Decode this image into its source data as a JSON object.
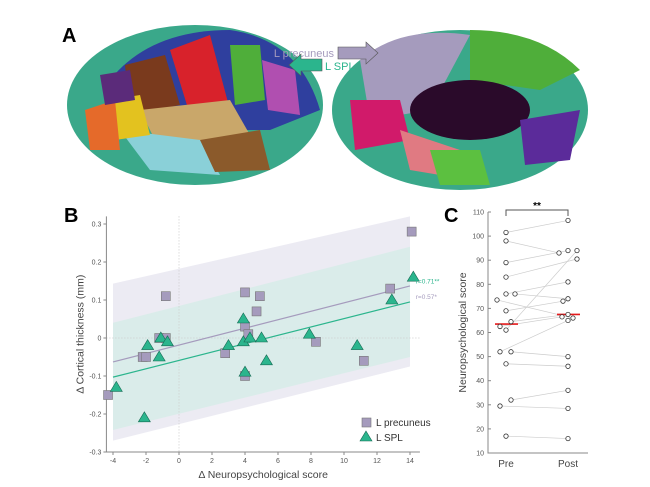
{
  "panel_labels": {
    "a": "A",
    "b": "B",
    "c": "C"
  },
  "panel_a": {
    "arrow_precuneus": "L precuneus",
    "arrow_spl": "L SPL",
    "colors": {
      "precuneus": "#a59bbd",
      "spl": "#2bb58d"
    }
  },
  "chart_data": [
    {
      "type": "scatter",
      "xlabel": "Δ Neuropsychological score",
      "ylabel": "Δ Cortical thickness (mm)",
      "xlim": [
        -4.4,
        14.6
      ],
      "ylim": [
        -0.3,
        0.32
      ],
      "xticks": [
        "-4",
        "-2",
        "0",
        "2",
        "4",
        "6",
        "8",
        "10",
        "12",
        "14"
      ],
      "yticks": [
        "-0.3",
        "-0.2",
        "-0.1",
        "0",
        "0.1",
        "0.2",
        "0.3"
      ],
      "legend_placement": "bottom-right",
      "series": [
        {
          "name": "L precuneus",
          "marker": "square",
          "color": "#a59bbd",
          "points": [
            [
              -4.3,
              -0.15
            ],
            [
              -2.2,
              -0.05
            ],
            [
              -2,
              -0.05
            ],
            [
              -1.2,
              0
            ],
            [
              -0.8,
              0
            ],
            [
              -0.8,
              0.11
            ],
            [
              2.8,
              -0.04
            ],
            [
              4,
              0.12
            ],
            [
              4,
              0.03
            ],
            [
              4.2,
              0.01
            ],
            [
              4,
              -0.1
            ],
            [
              4.7,
              0.07
            ],
            [
              4.9,
              0.11
            ],
            [
              8.3,
              -0.01
            ],
            [
              11.2,
              -0.06
            ],
            [
              12.8,
              0.13
            ],
            [
              14.1,
              0.28
            ]
          ],
          "fit": [
            [
              -4,
              -0.063
            ],
            [
              14,
              0.137
            ]
          ],
          "band_upper": [
            [
              -4,
              0.143
            ],
            [
              14,
              0.32
            ]
          ],
          "band_lower": [
            [
              -4,
              -0.27
            ],
            [
              14,
              -0.075
            ]
          ],
          "annotation": "r=0.57*"
        },
        {
          "name": "L SPL",
          "marker": "triangle",
          "color": "#2bb58d",
          "points": [
            [
              -3.8,
              -0.13
            ],
            [
              -2.1,
              -0.21
            ],
            [
              -1.9,
              -0.02
            ],
            [
              -1.2,
              -0.05
            ],
            [
              -1.1,
              0
            ],
            [
              -0.7,
              -0.01
            ],
            [
              3,
              -0.02
            ],
            [
              3.9,
              0.05
            ],
            [
              3.9,
              -0.01
            ],
            [
              4,
              -0.09
            ],
            [
              4.3,
              0
            ],
            [
              5,
              0
            ],
            [
              5.3,
              -0.06
            ],
            [
              7.9,
              0.01
            ],
            [
              10.8,
              -0.02
            ],
            [
              12.9,
              0.1
            ],
            [
              14.2,
              0.16
            ]
          ],
          "fit": [
            [
              -4,
              -0.103
            ],
            [
              14,
              0.095
            ]
          ],
          "band_upper": [
            [
              -4,
              0.04
            ],
            [
              14,
              0.24
            ]
          ],
          "band_lower": [
            [
              -4,
              -0.242
            ],
            [
              14,
              -0.05
            ]
          ],
          "annotation": "r=0.71**"
        }
      ]
    },
    {
      "type": "paired-scatter",
      "ylabel": "Neuropsychological score",
      "categories": [
        "Pre",
        "Post"
      ],
      "ylim": [
        10,
        110
      ],
      "yticks": [
        "10",
        "20",
        "30",
        "40",
        "50",
        "60",
        "70",
        "80",
        "90",
        "100",
        "110"
      ],
      "significance": "**",
      "means": {
        "Pre": 63.5,
        "Post": 67.5
      },
      "pairs": [
        [
          101.5,
          106.5
        ],
        [
          98,
          93
        ],
        [
          89,
          94
        ],
        [
          83,
          90.5
        ],
        [
          76,
          81
        ],
        [
          76,
          74
        ],
        [
          73.5,
          66
        ],
        [
          69,
          73
        ],
        [
          64.5,
          67.5
        ],
        [
          62.5,
          66.5
        ],
        [
          61,
          94
        ],
        [
          52,
          65
        ],
        [
          52,
          50
        ],
        [
          47,
          46
        ],
        [
          32,
          36
        ],
        [
          29.5,
          28.5
        ],
        [
          17,
          16
        ]
      ]
    }
  ]
}
